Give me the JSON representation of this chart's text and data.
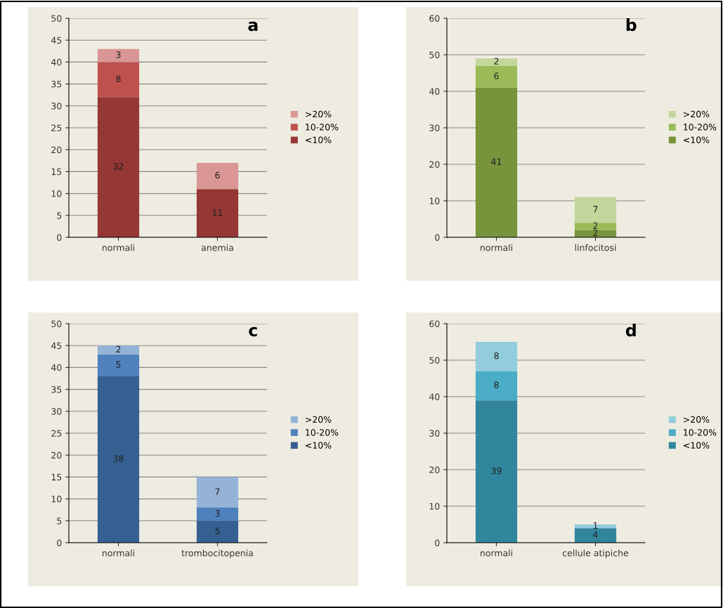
{
  "chart_data": [
    {
      "type": "bar",
      "title": "a",
      "stacked": true,
      "categories": [
        "normali",
        "anemia"
      ],
      "ylim": [
        0,
        50
      ],
      "yticks": [
        0,
        5,
        10,
        15,
        20,
        25,
        30,
        35,
        40,
        45,
        50
      ],
      "grid": "y",
      "legend": "right",
      "series": [
        {
          "name": "<10%",
          "color": "#953735",
          "values": [
            32,
            11
          ],
          "value_labels": [
            "32",
            "11"
          ]
        },
        {
          "name": "10-20%",
          "color": "#c0504d",
          "values": [
            8,
            0
          ],
          "value_labels": [
            "8",
            null
          ]
        },
        {
          "name": ">20%",
          "color": "#d99694",
          "values": [
            3,
            6
          ],
          "value_labels": [
            "3",
            "6"
          ]
        }
      ]
    },
    {
      "type": "bar",
      "title": "b",
      "stacked": true,
      "categories": [
        "normali",
        "linfocitosi"
      ],
      "ylim": [
        0,
        60
      ],
      "yticks": [
        0,
        10,
        20,
        30,
        40,
        50,
        60
      ],
      "grid": "y",
      "legend": "right",
      "series": [
        {
          "name": "<10%",
          "color": "#77933c",
          "values": [
            41,
            2
          ],
          "value_labels": [
            "41",
            "2"
          ]
        },
        {
          "name": "10-20%",
          "color": "#9bbb59",
          "values": [
            6,
            2
          ],
          "value_labels": [
            "6",
            "2"
          ]
        },
        {
          "name": ">20%",
          "color": "#c3d69b",
          "values": [
            2,
            7
          ],
          "value_labels": [
            "2",
            "7"
          ]
        }
      ]
    },
    {
      "type": "bar",
      "title": "c",
      "stacked": true,
      "categories": [
        "normali",
        "trombocitopenia"
      ],
      "ylim": [
        0,
        50
      ],
      "yticks": [
        0,
        5,
        10,
        15,
        20,
        25,
        30,
        35,
        40,
        45,
        50
      ],
      "grid": "y",
      "legend": "right",
      "series": [
        {
          "name": "<10%",
          "color": "#376092",
          "values": [
            38,
            5
          ],
          "value_labels": [
            "38",
            "5"
          ]
        },
        {
          "name": "10-20%",
          "color": "#4f81bd",
          "values": [
            5,
            3
          ],
          "value_labels": [
            "5",
            "3"
          ]
        },
        {
          "name": ">20%",
          "color": "#95b3d7",
          "values": [
            2,
            7
          ],
          "value_labels": [
            "2",
            "7"
          ]
        }
      ]
    },
    {
      "type": "bar",
      "title": "d",
      "stacked": true,
      "categories": [
        "normali",
        "cellule atipiche"
      ],
      "ylim": [
        0,
        60
      ],
      "yticks": [
        0,
        10,
        20,
        30,
        40,
        50,
        60
      ],
      "grid": "y",
      "legend": "right",
      "series": [
        {
          "name": "<10%",
          "color": "#31859c",
          "values": [
            39,
            4
          ],
          "value_labels": [
            "39",
            "4"
          ]
        },
        {
          "name": "10-20%",
          "color": "#4bacc6",
          "values": [
            8,
            0
          ],
          "value_labels": [
            "8",
            null
          ]
        },
        {
          "name": ">20%",
          "color": "#93cddd",
          "values": [
            8,
            1
          ],
          "value_labels": [
            "8",
            "1"
          ]
        }
      ]
    }
  ]
}
